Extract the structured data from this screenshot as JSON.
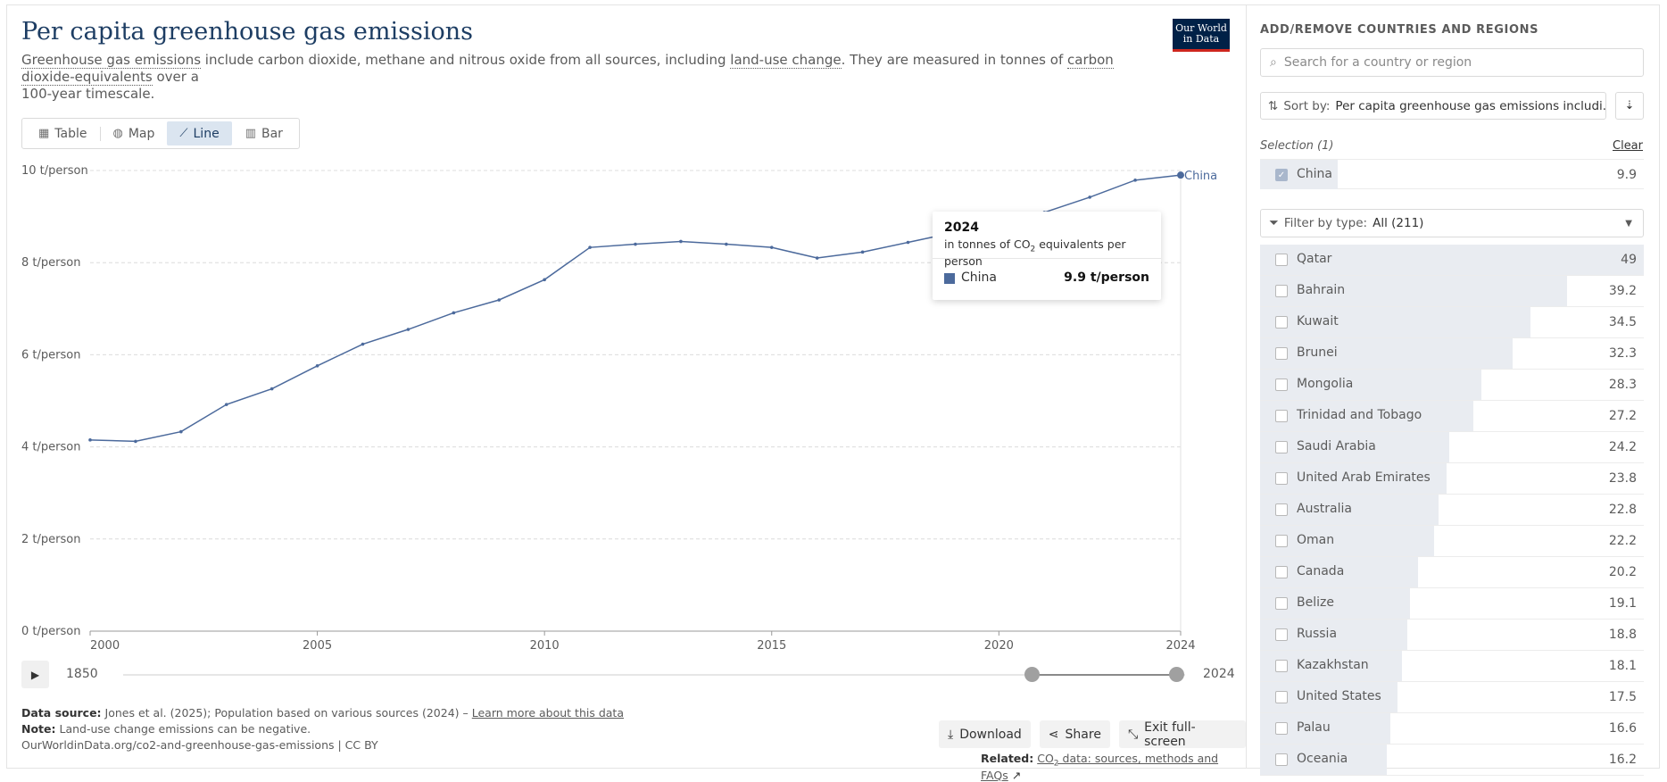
{
  "header": {
    "title": "Per capita greenhouse gas emissions",
    "subtitle_parts": [
      "Greenhouse gas emissions",
      " include carbon dioxide, methane and nitrous oxide from all sources, including ",
      "land-use change",
      ". They are measured in tonnes of ",
      "carbon dioxide-equivalents",
      " over a",
      "100-year timescale."
    ],
    "logo": [
      "Our World",
      "in Data"
    ]
  },
  "tabs": [
    {
      "label": "Table",
      "icon": "table-icon"
    },
    {
      "label": "Map",
      "icon": "globe-icon"
    },
    {
      "label": "Line",
      "icon": "line-chart-icon",
      "active": true
    },
    {
      "label": "Bar",
      "icon": "bar-chart-icon"
    }
  ],
  "chart_data": {
    "type": "line",
    "title": "Per capita greenhouse gas emissions",
    "ylabel": "t/person",
    "y_tick_labels": [
      "0 t/person",
      "2 t/person",
      "4 t/person",
      "6 t/person",
      "8 t/person",
      "10 t/person"
    ],
    "y_ticks": [
      0,
      2,
      4,
      6,
      8,
      10
    ],
    "ylim": [
      0,
      10
    ],
    "xlim": [
      2000,
      2024
    ],
    "x_tick_labels": [
      "2000",
      "2005",
      "2010",
      "2015",
      "2020",
      "2024"
    ],
    "x_ticks": [
      2000,
      2005,
      2010,
      2015,
      2020,
      2024
    ],
    "grid": true,
    "series": [
      {
        "name": "China",
        "color": "#4c6a9c",
        "x": [
          2000,
          2001,
          2002,
          2003,
          2004,
          2005,
          2006,
          2007,
          2008,
          2009,
          2010,
          2011,
          2012,
          2013,
          2014,
          2015,
          2016,
          2017,
          2018,
          2019,
          2020,
          2021,
          2022,
          2023,
          2024
        ],
        "y": [
          4.15,
          4.12,
          4.33,
          4.92,
          5.26,
          5.76,
          6.23,
          6.55,
          6.91,
          7.19,
          7.63,
          8.33,
          8.4,
          8.46,
          8.4,
          8.33,
          8.1,
          8.23,
          8.44,
          8.65,
          8.87,
          9.09,
          9.42,
          9.79,
          9.9
        ]
      }
    ]
  },
  "tooltip": {
    "year": "2024",
    "unit_pre": "in tonnes of CO",
    "unit_sub": "2",
    "unit_post": " equivalents per person",
    "entity": "China",
    "value": "9.9 t/person",
    "color": "#4c6a9c"
  },
  "timeline": {
    "start": "1850",
    "end": "2024"
  },
  "footer": {
    "source_label": "Data source:",
    "source_text": " Jones et al. (2025); Population based on various sources (2024) – ",
    "source_link": "Learn more about this data",
    "note_label": "Note:",
    "note_text": " Land-use change emissions can be negative.",
    "url": "OurWorldinData.org/co2-and-greenhouse-gas-emissions | CC BY"
  },
  "actions": {
    "download": "Download",
    "share": "Share",
    "fullscreen": "Exit full-screen"
  },
  "related": {
    "label": "Related:",
    "link_pre": "CO",
    "link_sub": "2",
    "link_post": " data: sources, methods and FAQs"
  },
  "sidebar": {
    "heading": "ADD/REMOVE COUNTRIES AND REGIONS",
    "search_placeholder": "Search for a country or region",
    "sort_label": "Sort by:",
    "sort_value": "Per capita greenhouse gas emissions includi...",
    "selection_label": "Selection (1)",
    "clear_label": "Clear",
    "selected": [
      {
        "name": "China",
        "value": "9.9"
      }
    ],
    "filter_label": "Filter by type:",
    "filter_value": "All (211)",
    "max_value": 49,
    "items": [
      {
        "name": "Qatar",
        "value": "49"
      },
      {
        "name": "Bahrain",
        "value": "39.2"
      },
      {
        "name": "Kuwait",
        "value": "34.5"
      },
      {
        "name": "Brunei",
        "value": "32.3"
      },
      {
        "name": "Mongolia",
        "value": "28.3"
      },
      {
        "name": "Trinidad and Tobago",
        "value": "27.2"
      },
      {
        "name": "Saudi Arabia",
        "value": "24.2"
      },
      {
        "name": "United Arab Emirates",
        "value": "23.8"
      },
      {
        "name": "Australia",
        "value": "22.8"
      },
      {
        "name": "Oman",
        "value": "22.2"
      },
      {
        "name": "Canada",
        "value": "20.2"
      },
      {
        "name": "Belize",
        "value": "19.1"
      },
      {
        "name": "Russia",
        "value": "18.8"
      },
      {
        "name": "Kazakhstan",
        "value": "18.1"
      },
      {
        "name": "United States",
        "value": "17.5"
      },
      {
        "name": "Palau",
        "value": "16.6"
      },
      {
        "name": "Oceania",
        "value": "16.2"
      }
    ]
  }
}
